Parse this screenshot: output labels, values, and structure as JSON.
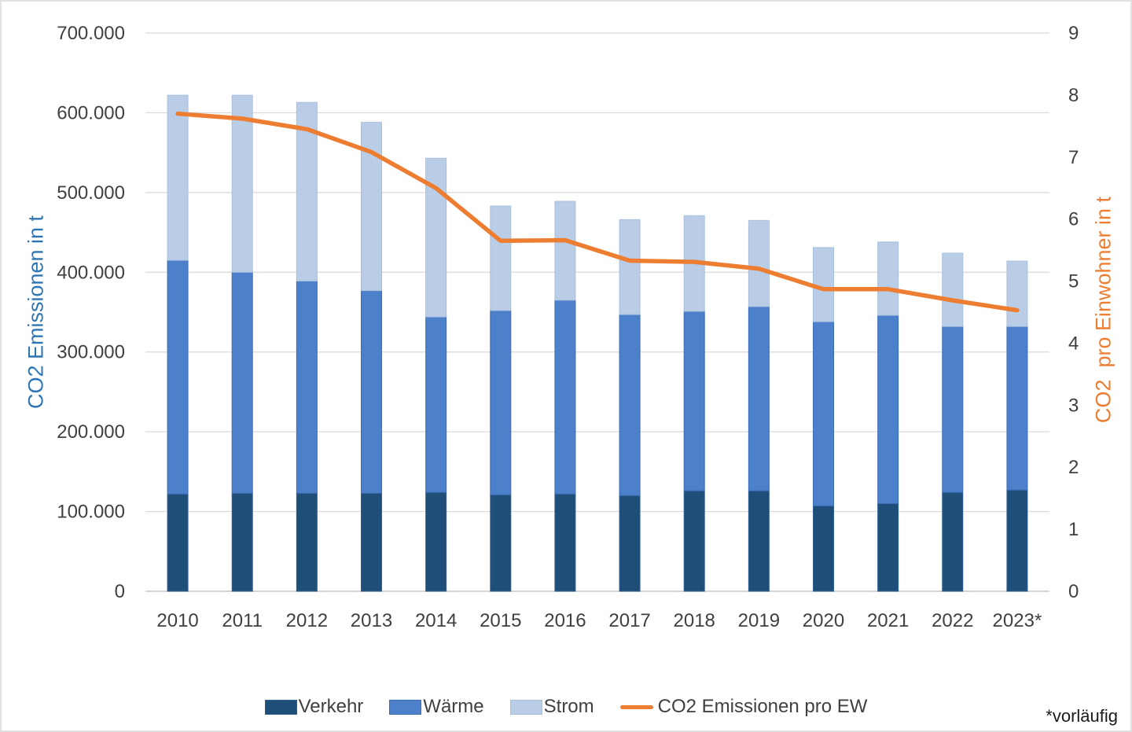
{
  "chart_data": {
    "type": "bar",
    "stacked": true,
    "grid": true,
    "legend_position": "bottom",
    "categories": [
      "2010",
      "2011",
      "2012",
      "2013",
      "2014",
      "2015",
      "2016",
      "2017",
      "2018",
      "2019",
      "2020",
      "2021",
      "2022",
      "2023*"
    ],
    "series": [
      {
        "name": "Verkehr",
        "color": "#1F4E79",
        "edge_color": "#2E5E92",
        "values": [
          122000,
          123000,
          123000,
          123000,
          124000,
          121000,
          122000,
          120000,
          126000,
          126000,
          107000,
          110000,
          124000,
          127000
        ]
      },
      {
        "name": "Wärme",
        "color": "#4C80CA",
        "edge_color": "#3E6DB5",
        "values": [
          293000,
          277000,
          266000,
          254000,
          220000,
          231000,
          243000,
          227000,
          225000,
          231000,
          231000,
          236000,
          208000,
          205000
        ]
      },
      {
        "name": "Strom",
        "color": "#B9CDE7",
        "edge_color": "#A9BFDE",
        "values": [
          207000,
          222000,
          224000,
          211000,
          199000,
          131000,
          124000,
          119000,
          120000,
          108000,
          93000,
          92000,
          92000,
          82000
        ]
      }
    ],
    "line_series": {
      "name": "CO2 Emissionen pro EW",
      "color": "#ED7D31",
      "values": [
        7.7,
        7.62,
        7.45,
        7.08,
        6.5,
        5.65,
        5.66,
        5.33,
        5.31,
        5.2,
        4.87,
        4.87,
        4.69,
        4.53
      ]
    },
    "left_axis": {
      "label": "CO2 Emissionen in t",
      "label_color": "#2E75B6",
      "min": 0,
      "max": 700000,
      "tick_step": 100000,
      "tick_labels": [
        "0",
        "100.000",
        "200.000",
        "300.000",
        "400.000",
        "500.000",
        "600.000",
        "700.000"
      ]
    },
    "right_axis": {
      "label": "CO2  pro Einwohner in t",
      "label_color": "#ED7D31",
      "min": 0,
      "max": 9,
      "tick_step": 1,
      "tick_labels": [
        "0",
        "1",
        "2",
        "3",
        "4",
        "5",
        "6",
        "7",
        "8",
        "9"
      ]
    }
  },
  "footnote": "*vorläufig"
}
